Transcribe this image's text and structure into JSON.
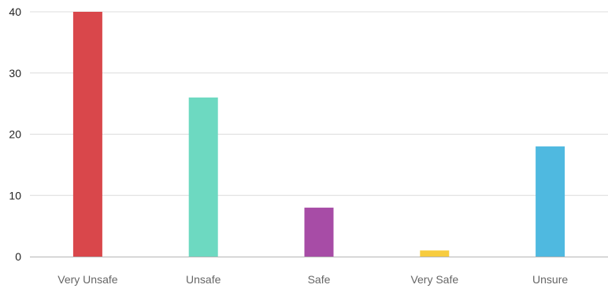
{
  "chart_data": {
    "type": "bar",
    "title": "",
    "xlabel": "",
    "ylabel": "",
    "categories": [
      "Very Unsafe",
      "Unsafe",
      "Safe",
      "Very Safe",
      "Unsure"
    ],
    "values": [
      40,
      26,
      8,
      1,
      18
    ],
    "colors": [
      "#d9474b",
      "#6dd9c1",
      "#a74ca6",
      "#f7cc3f",
      "#4fb9e0"
    ],
    "ylim": [
      0,
      40
    ],
    "yticks": [
      "0",
      "10",
      "20",
      "30",
      "40"
    ],
    "grid": true,
    "legend": "none"
  }
}
